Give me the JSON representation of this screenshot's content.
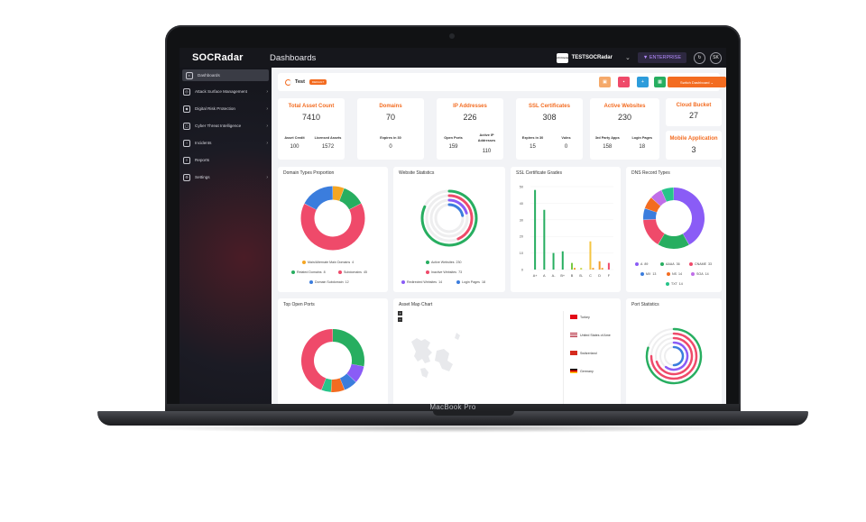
{
  "topbar": {
    "logo_text": "SOCRadar",
    "title": "Dashboards",
    "org_logo_text": "SOCRadar",
    "org_name": "TESTSOCRadar",
    "plan_badge": "ENTERPRISE",
    "avatar_initials": "SK"
  },
  "sidebar": {
    "items": [
      {
        "label": "Dashboards",
        "icon": "dashboard-icon"
      },
      {
        "label": "Attack Surface Management",
        "icon": "target-icon"
      },
      {
        "label": "Digital Risk Protection",
        "icon": "shield-icon"
      },
      {
        "label": "Cyber Threat Intelligence",
        "icon": "globe-icon"
      },
      {
        "label": "Incidents",
        "icon": "alert-icon"
      },
      {
        "label": "Reports",
        "icon": "report-icon"
      },
      {
        "label": "Settings",
        "icon": "gear-icon"
      }
    ]
  },
  "dashboard": {
    "name": "Test",
    "default_badge": "DEFAULT",
    "switch_label": "Switch Dashboard"
  },
  "stats": [
    {
      "title": "Total Asset Count",
      "value": "7410",
      "subs": [
        {
          "label": "Asset Credit",
          "value": "100"
        },
        {
          "label": "Licensed Assets",
          "value": "1572"
        }
      ]
    },
    {
      "title": "Domains",
      "value": "70",
      "subs": [
        {
          "label": "Expires in 30",
          "value": "0"
        }
      ]
    },
    {
      "title": "IP Addresses",
      "value": "226",
      "subs": [
        {
          "label": "Open Ports",
          "value": "159"
        },
        {
          "label": "Active IP Addresses",
          "value": "110"
        }
      ]
    },
    {
      "title": "SSL Certificates",
      "value": "308",
      "subs": [
        {
          "label": "Expires in 30",
          "value": "15"
        },
        {
          "label": "Vulns",
          "value": "0"
        }
      ]
    },
    {
      "title": "Active Websites",
      "value": "230",
      "subs": [
        {
          "label": "3rd Party Apps",
          "value": "158"
        },
        {
          "label": "Login Pages",
          "value": "18"
        }
      ]
    },
    {
      "title": "Cloud Bucket",
      "value": "27"
    },
    {
      "title": "Mobile Application",
      "value": "3"
    }
  ],
  "panels": {
    "domain_types": {
      "title": "Domain Types Proportion",
      "legend": [
        {
          "label": "Main/Alternate Main Domains",
          "value": "4",
          "color": "#f5a623"
        },
        {
          "label": "Related Domains",
          "value": "8",
          "color": "#27ae60"
        },
        {
          "label": "Subdomains",
          "value": "45",
          "color": "#ef4a6a"
        },
        {
          "label": "Domain Subdomain",
          "value": "12",
          "color": "#3b7ddd"
        }
      ]
    },
    "website_stats": {
      "title": "Website Statistics",
      "legend": [
        {
          "label": "Active Websites",
          "value": "230",
          "color": "#27ae60"
        },
        {
          "label": "Inactive Websites",
          "value": "73",
          "color": "#ef4a6a"
        },
        {
          "label": "Redirected Websites",
          "value": "14",
          "color": "#8a5cf6"
        },
        {
          "label": "Login Pages",
          "value": "18",
          "color": "#3b7ddd"
        }
      ]
    },
    "ssl_grades": {
      "title": "SSL Certificate Grades"
    },
    "dns_types": {
      "title": "DNS Record Types",
      "legend": [
        {
          "label": "A",
          "value": "89",
          "color": "#8a5cf6"
        },
        {
          "label": "AAAA",
          "value": "36",
          "color": "#27ae60"
        },
        {
          "label": "CNAME",
          "value": "33",
          "color": "#ef4a6a"
        },
        {
          "label": "MX",
          "value": "13",
          "color": "#3b7ddd"
        },
        {
          "label": "NS",
          "value": "14",
          "color": "#f36c21"
        },
        {
          "label": "SOA",
          "value": "14",
          "color": "#c06ee8"
        },
        {
          "label": "TXT",
          "value": "14",
          "color": "#27c48a"
        }
      ]
    },
    "open_ports": {
      "title": "Top Open Ports"
    },
    "asset_map": {
      "title": "Asset Map Chart",
      "countries": [
        "Turkey",
        "United States of Ame",
        "Switzerland",
        "Germany"
      ]
    },
    "port_stats": {
      "title": "Port Statistics"
    }
  },
  "chart_data": [
    {
      "type": "pie",
      "title": "Domain Types Proportion",
      "categories": [
        "Main/Alternate Main Domains",
        "Related Domains",
        "Subdomains",
        "Domain Subdomain"
      ],
      "values": [
        4,
        8,
        45,
        12
      ],
      "colors": [
        "#f5a623",
        "#27ae60",
        "#ef4a6a",
        "#3b7ddd"
      ]
    },
    {
      "type": "pie",
      "title": "Website Statistics",
      "categories": [
        "Active Websites",
        "Inactive Websites",
        "Redirected Websites",
        "Login Pages"
      ],
      "values": [
        230,
        73,
        14,
        18
      ],
      "colors": [
        "#27ae60",
        "#ef4a6a",
        "#8a5cf6",
        "#3b7ddd"
      ]
    },
    {
      "type": "bar",
      "title": "SSL Certificate Grades",
      "categories": [
        "A+",
        "A",
        "A-",
        "B+",
        "B",
        "B-",
        "C",
        "D",
        "F"
      ],
      "series": [
        {
          "values": [
            48,
            36,
            10,
            11,
            4,
            1,
            17,
            5,
            4
          ],
          "color_set": [
            "#27ae60",
            "#27ae60",
            "#27ae60",
            "#27ae60",
            "#7ac943",
            "#c8d84a",
            "#f5c542",
            "#f39c2c",
            "#ef4a6a"
          ]
        },
        {
          "values": [
            0,
            0,
            0,
            0,
            1,
            0,
            1,
            1,
            0
          ]
        }
      ],
      "ylim": [
        0,
        50
      ],
      "yticks": [
        0,
        10,
        20,
        30,
        40,
        50
      ]
    },
    {
      "type": "pie",
      "title": "DNS Record Types",
      "categories": [
        "A",
        "AAAA",
        "CNAME",
        "MX",
        "NS",
        "SOA",
        "TXT"
      ],
      "values": [
        89,
        36,
        33,
        13,
        14,
        14,
        14
      ],
      "colors": [
        "#8a5cf6",
        "#27ae60",
        "#ef4a6a",
        "#3b7ddd",
        "#f36c21",
        "#c06ee8",
        "#27c48a"
      ]
    }
  ],
  "laptop": {
    "model_label": "MacBook Pro"
  },
  "colors": {
    "accent": "#f36c21",
    "sidebar_bg": "#16171c"
  }
}
